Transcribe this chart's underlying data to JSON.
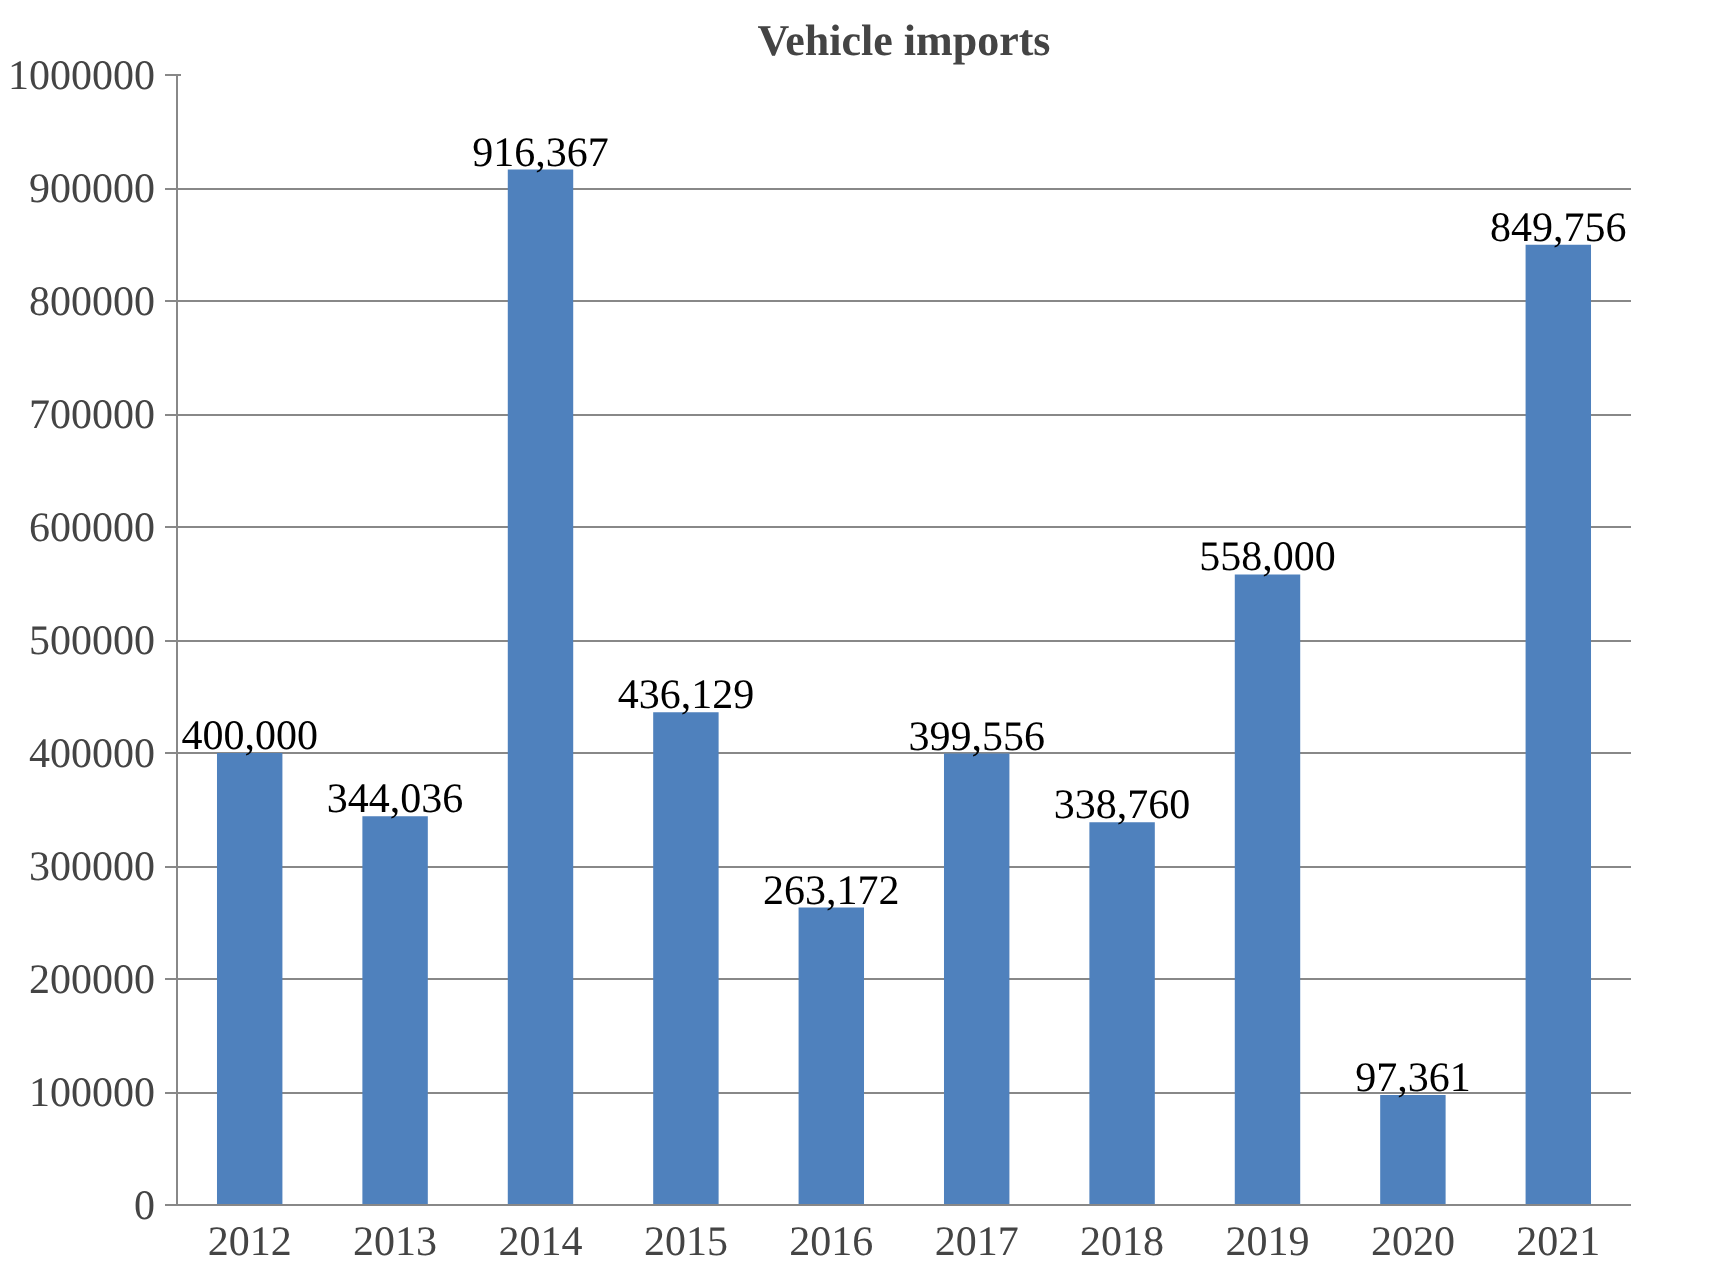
{
  "chart_data": {
    "type": "bar",
    "title": "Vehicle imports",
    "categories": [
      "2012",
      "2013",
      "2014",
      "2015",
      "2016",
      "2017",
      "2018",
      "2019",
      "2020",
      "2021"
    ],
    "values": [
      400000,
      344036,
      916367,
      436129,
      263172,
      399556,
      338760,
      558000,
      97361,
      849756
    ],
    "value_labels": [
      "400,000",
      "344,036",
      "916,367",
      "436,129",
      "263,172",
      "399,556",
      "338,760",
      "558,000",
      "97,361",
      "849,756"
    ],
    "color": "#4f81bd",
    "ylim": [
      0,
      1000000
    ],
    "yticks": [
      0,
      100000,
      200000,
      300000,
      400000,
      500000,
      600000,
      700000,
      800000,
      900000,
      1000000
    ],
    "grid": "y"
  }
}
